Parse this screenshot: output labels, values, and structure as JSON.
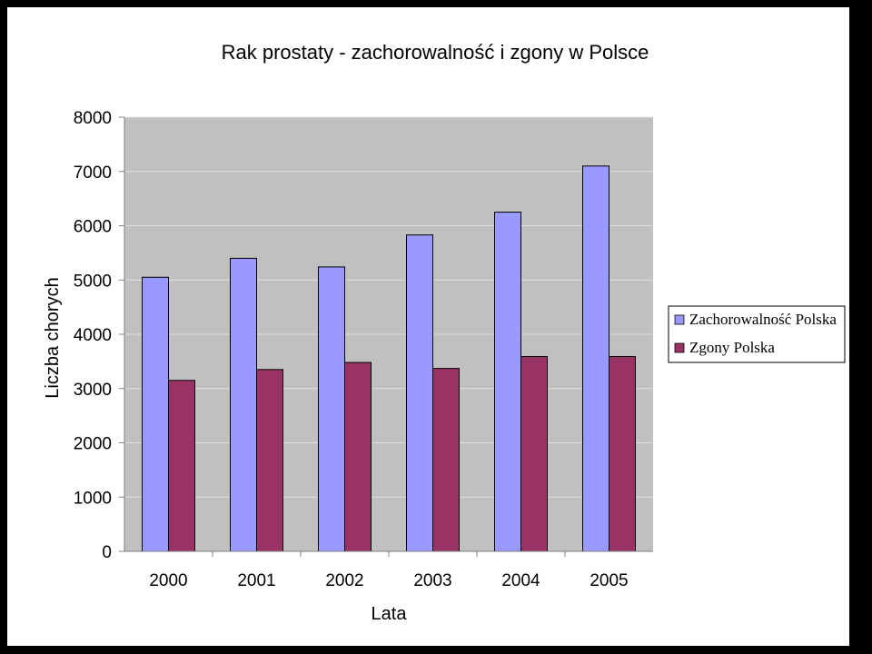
{
  "chart_data": {
    "type": "bar",
    "title": "Rak prostaty - zachorowalność i zgony w Polsce",
    "xlabel": "Lata",
    "ylabel": "Liczba chorych",
    "categories": [
      "2000",
      "2001",
      "2002",
      "2003",
      "2004",
      "2005"
    ],
    "ylim": [
      0,
      8000
    ],
    "yticks": [
      "0",
      "1000",
      "2000",
      "3000",
      "4000",
      "5000",
      "6000",
      "7000",
      "8000"
    ],
    "grid": true,
    "legend_position": "right",
    "series": [
      {
        "name": "Zachorowalność Polska",
        "color": "#9999ff",
        "values": [
          5050,
          5400,
          5240,
          5830,
          6250,
          7100
        ]
      },
      {
        "name": "Zgony Polska",
        "color": "#993366",
        "values": [
          3150,
          3350,
          3480,
          3370,
          3590,
          3590
        ]
      }
    ]
  }
}
